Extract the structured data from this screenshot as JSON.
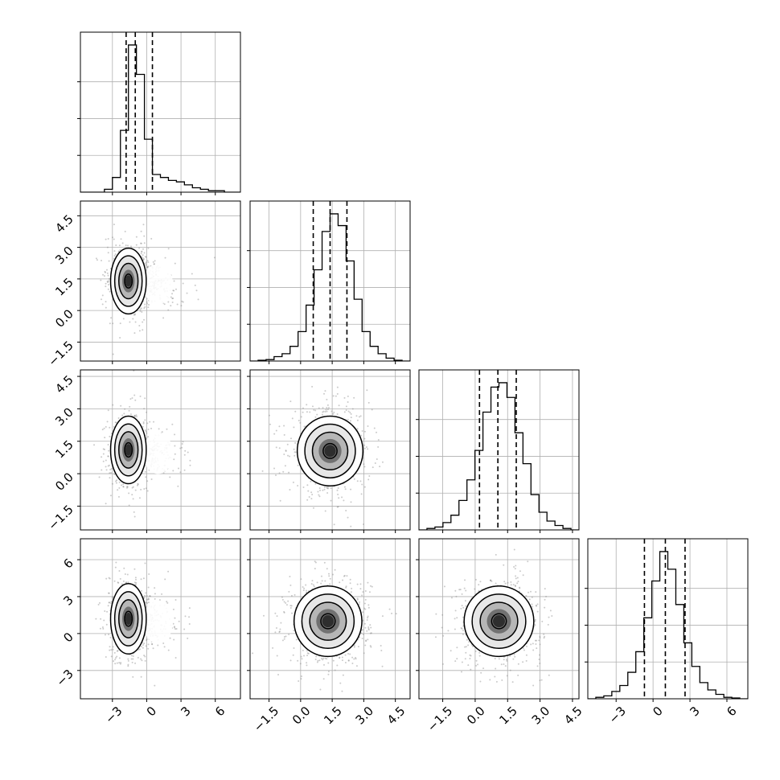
{
  "chart_data": {
    "type": "corner",
    "title": "",
    "grid": true,
    "colors": {
      "ink": "#000000",
      "grid": "#b0b0b0",
      "scatter": "#8c8c8c",
      "frame": "#000000",
      "background": "#ffffff"
    },
    "dimensions": [
      {
        "name": "",
        "range": [
          -5.8,
          8.2
        ],
        "ticks": [
          -3,
          0,
          3,
          6
        ],
        "tick_labels": [
          "−3",
          "0",
          "3",
          "6"
        ],
        "quantiles": [
          -1.8,
          -1.0,
          0.5
        ]
      },
      {
        "name": "",
        "range": [
          -2.4,
          5.2
        ],
        "ticks": [
          -1.5,
          0.0,
          1.5,
          3.0,
          4.5
        ],
        "tick_labels": [
          "−1.5",
          "0.0",
          "1.5",
          "3.0",
          "4.5"
        ],
        "quantiles": [
          0.6,
          1.4,
          2.2
        ]
      },
      {
        "name": "",
        "range": [
          -2.6,
          4.8
        ],
        "ticks": [
          -1.5,
          0.0,
          1.5,
          3.0,
          4.5
        ],
        "tick_labels": [
          "−1.5",
          "0.0",
          "1.5",
          "3.0",
          "4.5"
        ],
        "quantiles": [
          0.2,
          1.05,
          1.9
        ]
      },
      {
        "name": "",
        "range": [
          -5.3,
          7.7
        ],
        "ticks": [
          -3,
          0,
          3,
          6
        ],
        "tick_labels": [
          "−3",
          "0",
          "3",
          "6"
        ],
        "quantiles": [
          -0.7,
          1.0,
          2.6
        ]
      }
    ],
    "histograms": [
      {
        "dim": 0,
        "bin_edges": [
          -5.8,
          -5.1,
          -4.4,
          -3.7,
          -3.0,
          -2.3,
          -1.6,
          -0.9,
          -0.2,
          0.5,
          1.2,
          1.9,
          2.6,
          3.3,
          4.0,
          4.7,
          5.4,
          6.1,
          6.8,
          7.5,
          8.2
        ],
        "counts": [
          0,
          0,
          0,
          2,
          10,
          42,
          100,
          80,
          36,
          12,
          10,
          8,
          7,
          5,
          3,
          2,
          1,
          1,
          0,
          0
        ]
      },
      {
        "dim": 1,
        "bin_edges": [
          -2.4,
          -2.02,
          -1.64,
          -1.26,
          -0.88,
          -0.5,
          -0.12,
          0.26,
          0.64,
          1.02,
          1.4,
          1.78,
          2.16,
          2.54,
          2.92,
          3.3,
          3.68,
          4.06,
          4.44,
          4.82,
          5.2
        ],
        "counts": [
          0,
          0.5,
          1,
          3,
          5,
          10,
          20,
          38,
          62,
          88,
          100,
          92,
          68,
          42,
          20,
          10,
          5,
          2,
          0.5,
          0
        ]
      },
      {
        "dim": 2,
        "bin_edges": [
          -2.6,
          -2.23,
          -1.86,
          -1.49,
          -1.12,
          -0.75,
          -0.38,
          -0.01,
          0.36,
          0.73,
          1.1,
          1.47,
          1.84,
          2.21,
          2.58,
          2.95,
          3.32,
          3.69,
          4.06,
          4.43,
          4.8
        ],
        "counts": [
          0,
          1,
          2,
          5,
          10,
          20,
          34,
          54,
          80,
          97,
          100,
          90,
          66,
          45,
          24,
          12,
          6,
          3,
          1,
          0
        ]
      },
      {
        "dim": 3,
        "bin_edges": [
          -5.3,
          -4.65,
          -4.0,
          -3.35,
          -2.7,
          -2.05,
          -1.4,
          -0.75,
          -0.1,
          0.55,
          1.2,
          1.85,
          2.5,
          3.15,
          3.8,
          4.45,
          5.1,
          5.75,
          6.4,
          7.05,
          7.7
        ],
        "counts": [
          0,
          1,
          2,
          5,
          9,
          18,
          32,
          55,
          80,
          100,
          88,
          64,
          38,
          22,
          11,
          6,
          3,
          1,
          0.5,
          0
        ]
      }
    ],
    "pairs": [
      {
        "x_dim": 0,
        "y_dim": 1,
        "peak": [
          -1.6,
          1.4
        ],
        "spread": [
          0.6,
          0.6
        ],
        "tail": [
          -1.0,
          1.3
        ],
        "tail_spread": [
          1.8,
          0.55
        ]
      },
      {
        "x_dim": 0,
        "y_dim": 2,
        "peak": [
          -1.6,
          1.1
        ],
        "spread": [
          0.6,
          0.6
        ],
        "tail": [
          -1.0,
          1.0
        ],
        "tail_spread": [
          1.8,
          0.55
        ]
      },
      {
        "x_dim": 0,
        "y_dim": 3,
        "peak": [
          -1.6,
          1.2
        ],
        "spread": [
          0.6,
          1.1
        ],
        "tail": [
          -1.0,
          1.0
        ],
        "tail_spread": [
          1.8,
          1.05
        ]
      },
      {
        "x_dim": 1,
        "y_dim": 2,
        "peak": [
          1.4,
          1.05
        ],
        "spread": [
          0.6,
          0.62
        ]
      },
      {
        "x_dim": 1,
        "y_dim": 3,
        "peak": [
          1.3,
          1.0
        ],
        "spread": [
          0.62,
          1.1
        ]
      },
      {
        "x_dim": 2,
        "y_dim": 3,
        "peak": [
          1.1,
          1.0
        ],
        "spread": [
          0.62,
          1.1
        ]
      }
    ]
  }
}
